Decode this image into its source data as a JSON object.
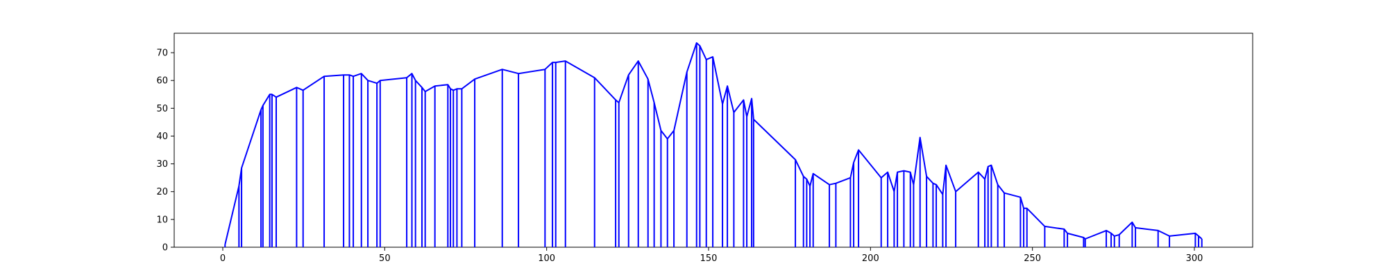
{
  "chart_data": {
    "type": "line",
    "title": "",
    "xlabel": "",
    "ylabel": "",
    "xlim": [
      -15,
      318
    ],
    "ylim": [
      0,
      77
    ],
    "grid": false,
    "legend": "none",
    "color": "#0000ff",
    "xticks": [
      0,
      50,
      100,
      150,
      200,
      250,
      300
    ],
    "yticks": [
      0,
      10,
      20,
      30,
      40,
      50,
      60,
      70
    ],
    "series": [
      {
        "style": "envelope line with a vertical drop line from each point to y = 0",
        "x": [
          0.7,
          5,
          5.8,
          11.8,
          12.4,
          14.5,
          15.2,
          16.5,
          22.8,
          24.8,
          31.3,
          37.3,
          39.1,
          40.3,
          42.8,
          44.8,
          47.6,
          48.6,
          56.8,
          58.4,
          59.5,
          61.5,
          62.5,
          65.5,
          69.5,
          70.3,
          71.2,
          72.3,
          73.8,
          77.8,
          86.3,
          91.3,
          99.5,
          101.8,
          102.8,
          105.8,
          114.8,
          121.3,
          122.3,
          125.3,
          128.3,
          131.3,
          133.2,
          135.3,
          137.3,
          139.3,
          143.3,
          146.3,
          147.3,
          149.3,
          151.3,
          154.3,
          155.8,
          157.8,
          160.8,
          161.8,
          163.3,
          163.9,
          176.8,
          179.3,
          180.3,
          181.3,
          182.3,
          187.3,
          189.3,
          193.8,
          194.8,
          196.3,
          203.3,
          205.3,
          207.3,
          208.3,
          210.3,
          212.3,
          213.3,
          215.3,
          217.3,
          219.3,
          220.3,
          222.3,
          223.3,
          226.3,
          233.3,
          235.3,
          236.3,
          237.3,
          239.3,
          241.3,
          246.3,
          247.3,
          248.3,
          253.8,
          259.8,
          260.8,
          265.8,
          266.3,
          272.8,
          274.3,
          275.3,
          276.8,
          280.8,
          281.8,
          288.8,
          292.3,
          300.3,
          301.3,
          302.3
        ],
        "y": [
          1,
          22,
          28.5,
          49.5,
          51,
          55,
          55,
          54,
          57.5,
          56.5,
          61.5,
          62,
          62,
          61.5,
          62.5,
          60,
          59,
          60,
          61,
          62.5,
          60,
          57.5,
          56,
          58,
          58.5,
          57,
          56.5,
          57,
          57,
          60.5,
          64,
          62.5,
          64,
          66.5,
          66.5,
          67,
          61,
          53,
          52,
          62,
          67,
          60.5,
          52,
          42,
          39,
          42,
          63,
          73.5,
          72.5,
          67.5,
          68.5,
          51.5,
          58,
          48.5,
          53,
          47,
          53.5,
          46,
          31.5,
          25.5,
          24.5,
          22,
          26.5,
          22.5,
          23,
          25,
          30.5,
          35,
          25,
          27,
          20,
          27,
          27.5,
          27,
          22.5,
          39.5,
          25.5,
          23,
          22.5,
          19,
          29.5,
          20,
          27,
          24.5,
          29,
          29.5,
          22.5,
          19.5,
          18,
          14,
          14,
          7.5,
          6.5,
          5,
          3.5,
          3,
          6,
          5,
          4,
          4.5,
          9,
          7,
          6,
          4,
          5,
          4,
          3
        ]
      }
    ]
  }
}
